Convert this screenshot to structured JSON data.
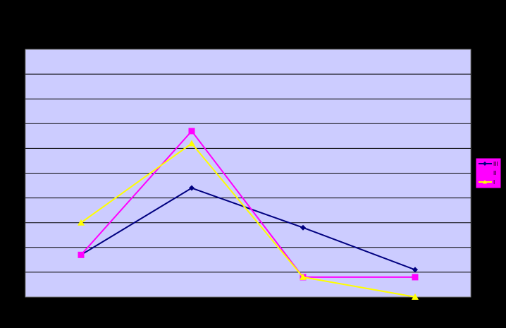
{
  "chart_data": {
    "type": "line",
    "x": [
      1,
      2,
      3,
      4
    ],
    "ylim": [
      0,
      10
    ],
    "grid": true,
    "legend_position": "right",
    "plot_background": "#CCCCFF",
    "page_background": "#000000",
    "legend_background": "#FF00FF",
    "series": [
      {
        "name": "III",
        "color": "#000080",
        "marker": "diamond",
        "values": [
          1.7,
          4.4,
          2.8,
          1.1
        ]
      },
      {
        "name": "II",
        "color": "#FF00FF",
        "marker": "square",
        "values": [
          1.7,
          6.7,
          0.8,
          0.8
        ]
      },
      {
        "name": "I",
        "color": "#FFFF00",
        "marker": "triangle",
        "values": [
          3.0,
          6.2,
          0.8,
          0.0
        ]
      }
    ]
  }
}
